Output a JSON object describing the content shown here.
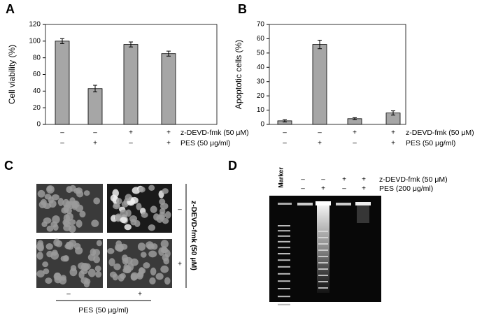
{
  "chart_data": [
    {
      "type": "bar",
      "panel_label": "A",
      "ylabel": "Cell viability (%)",
      "color": "#a6a6a6",
      "values": [
        100,
        43,
        96,
        85
      ],
      "errors": [
        3,
        4,
        3,
        3
      ],
      "ylim": [
        0,
        120
      ],
      "yticks": [
        0,
        20,
        40,
        60,
        80,
        100,
        120
      ],
      "treatments": [
        {
          "name": "z-DEVD-fmk (50 μM)",
          "signs": [
            "–",
            "–",
            "+",
            "+"
          ]
        },
        {
          "name": "PES (50 μg/ml)",
          "signs": [
            "–",
            "+",
            "–",
            "+"
          ]
        }
      ]
    },
    {
      "type": "bar",
      "panel_label": "B",
      "ylabel": "Apoptotic cells (%)",
      "color": "#a6a6a6",
      "values": [
        2.5,
        56,
        4,
        8
      ],
      "errors": [
        0.8,
        3,
        0.7,
        1.5
      ],
      "ylim": [
        0,
        70
      ],
      "yticks": [
        0,
        10,
        20,
        30,
        40,
        50,
        60,
        70
      ],
      "treatments": [
        {
          "name": "z-DEVD-fmk (50 μM)",
          "signs": [
            "–",
            "–",
            "+",
            "+"
          ]
        },
        {
          "name": "PES (50 μg/ml)",
          "signs": [
            "–",
            "+",
            "–",
            "+"
          ]
        }
      ]
    }
  ],
  "panel_c": {
    "label": "C",
    "row_label": "z-DEVD-fmk (50 μM)",
    "row_signs": [
      "–",
      "+"
    ],
    "col_signs": [
      "–",
      "+"
    ],
    "col_label": "PES (50 μg/ml)"
  },
  "panel_d": {
    "label": "D",
    "marker_label": "Marker",
    "treatments": [
      {
        "name": "z-DEVD-fmk (50 μM)",
        "signs": [
          "–",
          "–",
          "+",
          "+"
        ]
      },
      {
        "name": "PES (200 μg/ml)",
        "signs": [
          "–",
          "+",
          "–",
          "+"
        ]
      }
    ]
  }
}
